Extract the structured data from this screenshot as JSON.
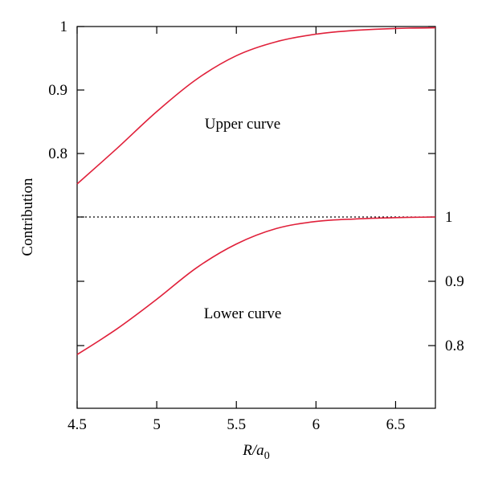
{
  "chart_data": {
    "type": "line",
    "xlabel_main": "R/a",
    "xlabel_sub": "0",
    "ylabel": "Contribution",
    "xlim": [
      4.5,
      6.75
    ],
    "x_ticks": [
      "4.5",
      "5",
      "5.5",
      "6",
      "6.5"
    ],
    "x_tick_values": [
      4.5,
      5,
      5.5,
      6,
      6.5
    ],
    "upper_y_ticks": [
      "1",
      "0.9",
      "0.8"
    ],
    "upper_y_tick_values": [
      1.0,
      0.9,
      0.8
    ],
    "lower_y_ticks": [
      "1",
      "0.9",
      "0.8"
    ],
    "lower_y_tick_values": [
      1.0,
      0.9,
      0.8
    ],
    "upper_ylim": [
      0.7,
      1.0
    ],
    "lower_ylim": [
      0.7,
      1.0
    ],
    "series": [
      {
        "label": "Upper curve",
        "color": "#e0203a",
        "x": [
          4.5,
          4.75,
          5.0,
          5.25,
          5.5,
          5.75,
          6.0,
          6.25,
          6.5,
          6.75
        ],
        "y": [
          0.752,
          0.808,
          0.866,
          0.917,
          0.954,
          0.976,
          0.988,
          0.994,
          0.997,
          0.998
        ]
      },
      {
        "label": "Lower curve",
        "color": "#e0203a",
        "x": [
          4.5,
          4.75,
          5.0,
          5.25,
          5.5,
          5.75,
          6.0,
          6.25,
          6.5,
          6.75
        ],
        "y": [
          0.786,
          0.826,
          0.872,
          0.921,
          0.958,
          0.982,
          0.993,
          0.997,
          0.999,
          1.0
        ]
      }
    ],
    "separator": "dotted",
    "grid": false
  }
}
